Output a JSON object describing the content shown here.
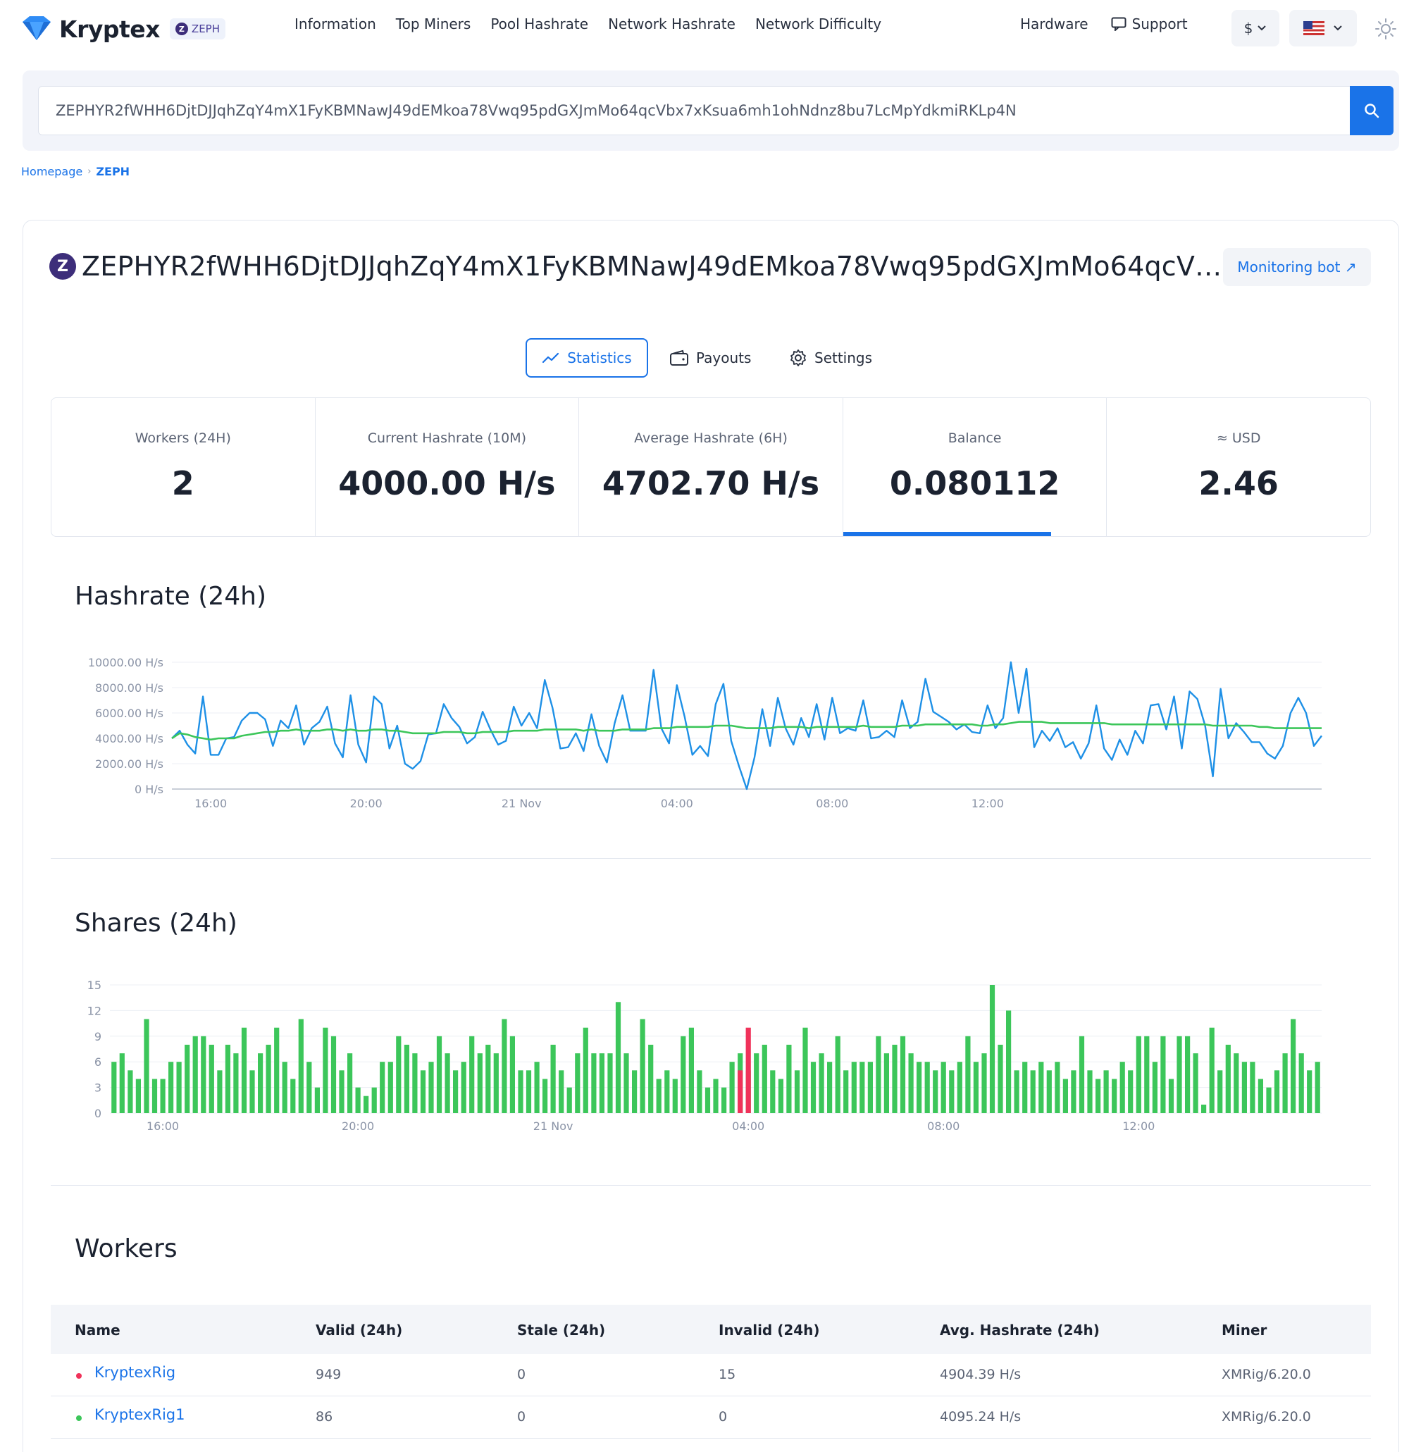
{
  "header": {
    "brand": "Kryptex",
    "coin_chip": "ZEPH",
    "nav": [
      "Information",
      "Top Miners",
      "Pool Hashrate",
      "Network Hashrate",
      "Network Difficulty"
    ],
    "hardware": "Hardware",
    "support": "Support",
    "currency": "$"
  },
  "search": {
    "value": "ZEPHYR2fWHH6DjtDJJqhZqY4mX1FyKBMNawJ49dEMkoa78Vwq95pdGXJmMo64qcVbx7xKsua6mh1ohNdnz8bu7LcMpYdkmiRKLp4N"
  },
  "breadcrumb": {
    "home": "Homepage",
    "current": "ZEPH"
  },
  "address": {
    "text": "ZEPHYR2fWHH6DjtDJJqhZqY4mX1FyKBMNawJ49dEMkoa78Vwq95pdGXJmMo64qcVbx7xKsua6mh1ohNdnz8bu7LcMpYdkmiRKLp4N",
    "monitoring_bot": "Monitoring bot ↗"
  },
  "tabs": {
    "statistics": "Statistics",
    "payouts": "Payouts",
    "settings": "Settings"
  },
  "stats": [
    {
      "label": "Workers (24H)",
      "value": "2"
    },
    {
      "label": "Current Hashrate (10M)",
      "value": "4000.00 H/s"
    },
    {
      "label": "Average Hashrate (6H)",
      "value": "4702.70 H/s"
    },
    {
      "label": "Balance",
      "value": "0.080112",
      "progress": 0.79
    },
    {
      "label": "≈ USD",
      "value": "2.46"
    }
  ],
  "sections": {
    "hashrate": "Hashrate (24h)",
    "shares": "Shares (24h)",
    "workers": "Workers"
  },
  "chart_data": [
    {
      "type": "line",
      "title": "Hashrate (24h)",
      "x_ticks": [
        "16:00",
        "20:00",
        "21 Nov",
        "04:00",
        "08:00",
        "12:00"
      ],
      "x_tick_index": [
        5,
        25,
        45,
        65,
        85,
        105
      ],
      "y_ticks": [
        "0 H/s",
        "2000.00 H/s",
        "4000.00 H/s",
        "6000.00 H/s",
        "8000.00 H/s",
        "10000.00 H/s"
      ],
      "ylim": [
        0,
        10000
      ],
      "colors": {
        "hashrate": "#1e90e6",
        "average": "#3cc65a"
      },
      "series": [
        {
          "values": [
            4000,
            4600,
            3500,
            2800,
            7300,
            2700,
            2700,
            4000,
            4100,
            5400,
            6000,
            6000,
            5500,
            3400,
            5400,
            4800,
            6600,
            3500,
            4800,
            5300,
            6500,
            3600,
            2500,
            7400,
            3500,
            2100,
            7300,
            6700,
            3200,
            5000,
            2000,
            1600,
            2200,
            4300,
            4400,
            6700,
            5600,
            4900,
            3600,
            4100,
            6100,
            4700,
            3500,
            3800,
            6500,
            5000,
            6000,
            4800,
            8600,
            6400,
            3200,
            3300,
            4400,
            3000,
            5900,
            3400,
            2100,
            5200,
            7400,
            4600,
            4600,
            4600,
            9400,
            4800,
            3600,
            8200,
            5700,
            2700,
            3400,
            2600,
            6700,
            8300,
            3800,
            1800,
            0,
            2500,
            6300,
            3400,
            7200,
            4800,
            3500,
            5600,
            4100,
            6700,
            3900,
            7200,
            4400,
            4800,
            4600,
            7000,
            4000,
            4100,
            4600,
            4100,
            7000,
            4800,
            5300,
            8700,
            6100,
            5700,
            5300,
            4700,
            5100,
            4500,
            4400,
            6600,
            4800,
            5600,
            10000,
            6000,
            9500,
            3300,
            4600,
            3800,
            4800,
            3300,
            3700,
            2400,
            3600,
            6600,
            3200,
            2300,
            3900,
            2700,
            4600,
            3600,
            6600,
            6700,
            4700,
            7300,
            3200,
            7700,
            7100,
            5000,
            1000,
            7900,
            4000,
            5200,
            4500,
            3700,
            3700,
            2800,
            2400,
            3400,
            6000,
            7200,
            6000,
            3400,
            4200
          ],
          "name": ""
        },
        {
          "values": [
            4000,
            4400,
            4300,
            4100,
            4000,
            3900,
            4000,
            4000,
            4000,
            4200,
            4300,
            4400,
            4500,
            4500,
            4600,
            4600,
            4700,
            4600,
            4600,
            4600,
            4700,
            4700,
            4600,
            4700,
            4600,
            4600,
            4700,
            4700,
            4600,
            4600,
            4500,
            4400,
            4400,
            4400,
            4400,
            4500,
            4500,
            4500,
            4400,
            4400,
            4500,
            4500,
            4500,
            4500,
            4600,
            4600,
            4600,
            4600,
            4700,
            4700,
            4700,
            4700,
            4700,
            4600,
            4700,
            4600,
            4600,
            4600,
            4700,
            4700,
            4700,
            4700,
            4800,
            4800,
            4800,
            4900,
            4900,
            4900,
            4900,
            4900,
            5000,
            5000,
            5000,
            4900,
            4800,
            4800,
            4800,
            4800,
            4900,
            4900,
            4900,
            4900,
            4800,
            4900,
            4900,
            4900,
            4900,
            4900,
            4900,
            5000,
            4900,
            4900,
            4900,
            4900,
            5000,
            5000,
            5000,
            5100,
            5100,
            5100,
            5100,
            5100,
            5100,
            5100,
            5000,
            5000,
            5100,
            5100,
            5200,
            5300,
            5300,
            5300,
            5300,
            5200,
            5200,
            5200,
            5200,
            5200,
            5200,
            5200,
            5200,
            5100,
            5100,
            5100,
            5100,
            5100,
            5100,
            5100,
            5100,
            5100,
            5100,
            5100,
            5100,
            5100,
            5000,
            5000,
            5000,
            5000,
            5000,
            5000,
            4900,
            4900,
            4800,
            4800,
            4800,
            4800,
            4800,
            4800,
            4800
          ],
          "name": ""
        }
      ]
    },
    {
      "type": "bar",
      "title": "Shares (24h)",
      "x_ticks": [
        "16:00",
        "20:00",
        "21 Nov",
        "04:00",
        "08:00",
        "12:00"
      ],
      "x_tick_index": [
        6,
        30,
        54,
        78,
        102,
        126
      ],
      "y_ticks": [
        "0",
        "3",
        "6",
        "9",
        "12",
        "15"
      ],
      "ylim": [
        0,
        15
      ],
      "colors": {
        "valid": "#3cc65a",
        "invalid": "#f0325a"
      },
      "series": [
        {
          "name": "valid",
          "values": [
            6,
            7,
            5,
            4,
            11,
            4,
            4,
            6,
            6,
            8,
            9,
            9,
            8,
            5,
            8,
            7,
            10,
            5,
            7,
            8,
            10,
            6,
            4,
            11,
            6,
            3,
            10,
            9,
            5,
            7,
            3,
            2,
            3,
            6,
            6,
            9,
            8,
            7,
            5,
            6,
            9,
            7,
            5,
            6,
            9,
            7,
            8,
            7,
            11,
            9,
            5,
            5,
            6,
            4,
            8,
            5,
            3,
            7,
            10,
            7,
            7,
            7,
            13,
            7,
            5,
            11,
            8,
            4,
            5,
            4,
            9,
            10,
            5,
            3,
            4,
            3,
            6,
            7,
            5,
            7,
            8,
            5,
            4,
            8,
            5,
            10,
            6,
            7,
            6,
            9,
            5,
            6,
            6,
            6,
            9,
            7,
            8,
            9,
            7,
            6,
            6,
            5,
            6,
            5,
            6,
            9,
            6,
            7,
            15,
            8,
            12,
            5,
            6,
            5,
            6,
            5,
            6,
            4,
            5,
            9,
            5,
            4,
            5,
            4,
            6,
            5,
            9,
            9,
            6,
            9,
            4,
            9,
            9,
            7,
            1,
            10,
            5,
            8,
            7,
            6,
            6,
            4,
            3,
            5,
            7,
            11,
            7,
            5,
            6
          ],
          "invalid_index": [
            77,
            78
          ],
          "invalid_values": [
            5,
            10
          ]
        }
      ]
    }
  ],
  "workers": {
    "columns": [
      "Name",
      "Valid (24h)",
      "Stale (24h)",
      "Invalid (24h)",
      "Avg. Hashrate (24h)",
      "Miner"
    ],
    "rows": [
      {
        "status_color": "#f0325a",
        "name": "KryptexRig",
        "valid": "949",
        "stale": "0",
        "invalid": "15",
        "avg": "4904.39 H/s",
        "miner": "XMRig/6.20.0"
      },
      {
        "status_color": "#3cc65a",
        "name": "KryptexRig1",
        "valid": "86",
        "stale": "0",
        "invalid": "0",
        "avg": "4095.24 H/s",
        "miner": "XMRig/6.20.0"
      }
    ]
  }
}
